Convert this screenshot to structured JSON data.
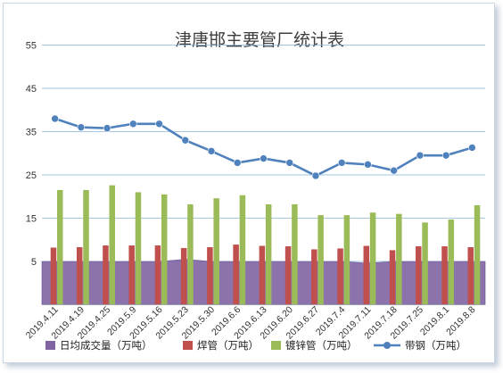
{
  "chart_data": {
    "type": "bar",
    "title": "津唐邯主要管厂统计表",
    "xlabel": "",
    "ylabel": "",
    "ylim": [
      -5,
      55
    ],
    "yticks": [
      5,
      15,
      25,
      35,
      45,
      55
    ],
    "grid": true,
    "legend_position": "bottom",
    "categories": [
      "2019.4.11",
      "2019.4.19",
      "2019.4.25",
      "2019.5.9",
      "2019.5.16",
      "2019.5.23",
      "2019.5.30",
      "2019.6.6",
      "2019.6.13",
      "2019.6.20",
      "2019.6.27",
      "2019.7.4",
      "2019.7.11",
      "2019.7.18",
      "2019.7.25",
      "2019.8.1",
      "2019.8.8"
    ],
    "series": [
      {
        "name": "日均成交量（万吨）",
        "type": "area",
        "color": "#8064a2",
        "values": [
          5.0,
          5.0,
          5.0,
          5.0,
          5.0,
          5.5,
          5.0,
          5.0,
          5.0,
          5.0,
          5.0,
          5.0,
          4.6,
          5.0,
          5.0,
          5.0,
          5.0
        ]
      },
      {
        "name": "焊管（万吨）",
        "type": "bar",
        "color": "#c0504d",
        "values": [
          8.2,
          8.3,
          8.7,
          8.7,
          8.7,
          8.1,
          8.3,
          8.9,
          8.6,
          8.5,
          7.8,
          8.0,
          8.6,
          7.6,
          8.5,
          8.5,
          8.3
        ]
      },
      {
        "name": "镀锌管（万吨）",
        "type": "bar",
        "color": "#9bbb59",
        "values": [
          21.5,
          21.5,
          22.6,
          21.0,
          20.5,
          18.2,
          19.6,
          20.3,
          18.2,
          18.2,
          15.7,
          15.7,
          16.3,
          16.0,
          14.0,
          14.7,
          18.0
        ]
      },
      {
        "name": "带钢（万吨）",
        "type": "line",
        "color": "#4f81bd",
        "values": [
          38.0,
          36.0,
          35.8,
          36.8,
          36.8,
          33.0,
          30.5,
          27.8,
          28.8,
          27.8,
          24.8,
          27.8,
          27.4,
          26.0,
          29.5,
          29.5,
          31.3
        ]
      }
    ]
  }
}
